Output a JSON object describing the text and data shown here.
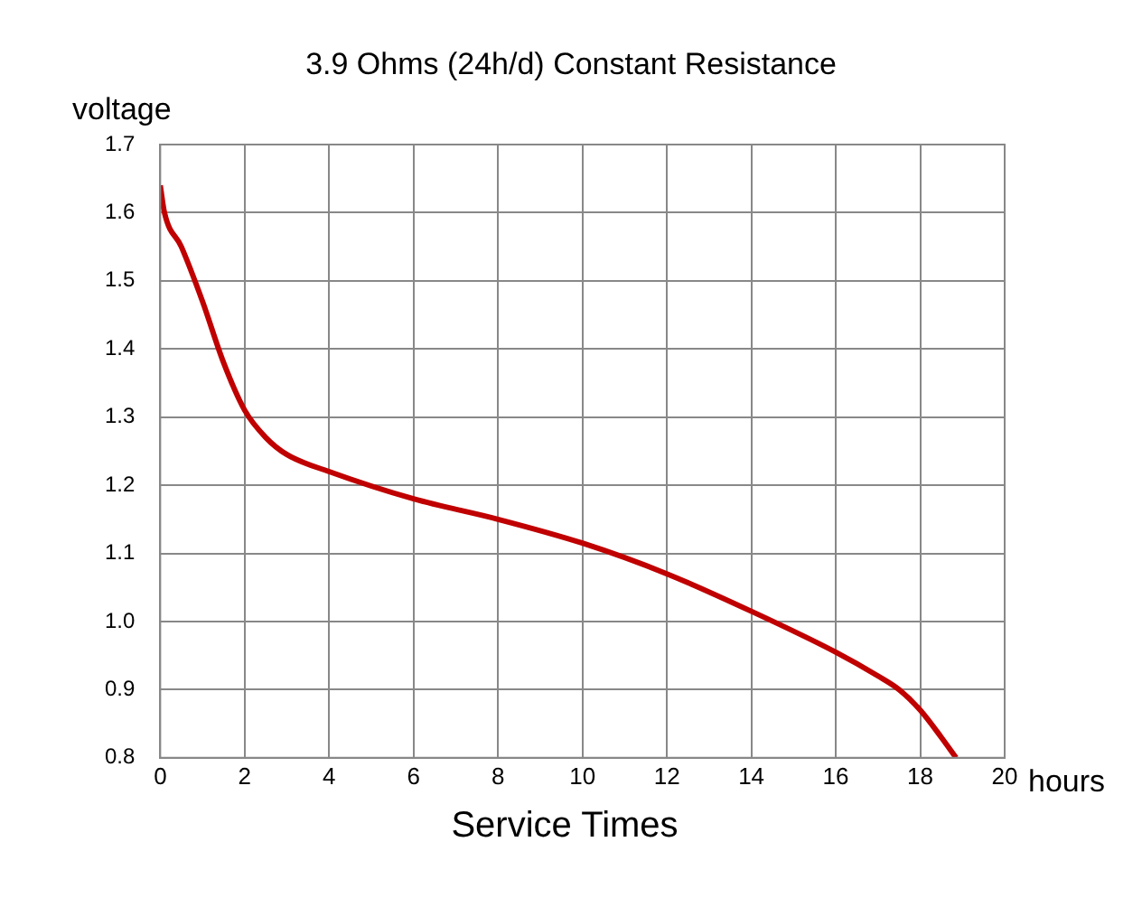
{
  "chart_data": {
    "type": "line",
    "title": "3.9 Ohms (24h/d) Constant Resistance",
    "xlabel": "Service Times",
    "ylabel": "voltage",
    "annotations": [
      "hours"
    ],
    "x": [
      0,
      0.1,
      0.5,
      1,
      1.5,
      2,
      2.5,
      3,
      4,
      6,
      8,
      10,
      12,
      14,
      16,
      17,
      17.5,
      18,
      18.5,
      18.85
    ],
    "series": [
      {
        "color": "#c00000",
        "values": [
          1.64,
          1.6,
          1.55,
          1.47,
          1.38,
          1.31,
          1.27,
          1.245,
          1.22,
          1.18,
          1.15,
          1.115,
          1.07,
          1.015,
          0.955,
          0.92,
          0.9,
          0.87,
          0.83,
          0.8
        ]
      }
    ],
    "xlim": [
      0,
      20
    ],
    "xticks": [
      0,
      2,
      4,
      6,
      8,
      10,
      12,
      14,
      16,
      18,
      20
    ],
    "ylim": [
      0.8,
      1.7
    ],
    "yticks": [
      0.8,
      0.9,
      {
        "value": 1,
        "label": "1.0"
      },
      1.1,
      1.2,
      1.3,
      1.4,
      1.5,
      1.6,
      1.7
    ],
    "grid": true,
    "legend": false,
    "marker": "none",
    "line_style": "solid"
  }
}
